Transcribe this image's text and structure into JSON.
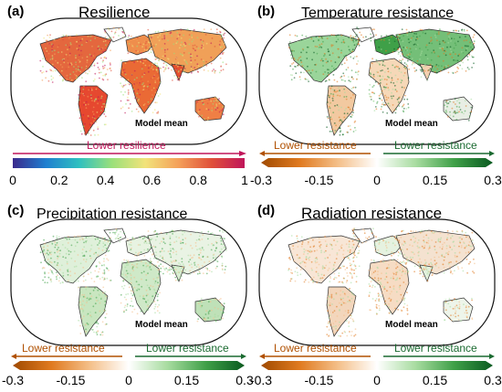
{
  "panels": [
    {
      "label": "(a)",
      "title": "Resilience",
      "note": "Model mean",
      "scheme": "resilience",
      "colorbar": {
        "arrow_text": "Lower resilience",
        "ticks": [
          "0",
          "0.2",
          "0.4",
          "0.6",
          "0.8",
          "1"
        ],
        "colors": [
          "#3b2a8c",
          "#1f7fd0",
          "#2fc0c0",
          "#9be07a",
          "#f2e37a",
          "#f4a05a",
          "#e0503a",
          "#c0155a"
        ]
      }
    },
    {
      "label": "(b)",
      "title": "Temperature resistance",
      "note": "Model mean",
      "scheme": "temperature",
      "colorbar": {
        "left_text": "Lower resistance",
        "right_text": "Lower resistance",
        "ticks": [
          "-0.3",
          "-0.15",
          "0",
          "0.15",
          "0.3"
        ],
        "colors": [
          "#a04a00",
          "#e07a20",
          "#f4c08a",
          "#ffffff",
          "#a8dca0",
          "#3fa048",
          "#0a5a20"
        ]
      }
    },
    {
      "label": "(c)",
      "title": "Precipitation resistance",
      "note": "Model mean",
      "scheme": "precipitation",
      "colorbar": {
        "left_text": "Lower resistance",
        "right_text": "Lower resistance",
        "ticks": [
          "-0.3",
          "-0.15",
          "0",
          "0.15",
          "0.3"
        ],
        "colors": [
          "#a04a00",
          "#e07a20",
          "#f4c08a",
          "#ffffff",
          "#a8dca0",
          "#3fa048",
          "#0a5a20"
        ]
      }
    },
    {
      "label": "(d)",
      "title": "Radiation resistance",
      "note": "Model mean",
      "scheme": "radiation",
      "colorbar": {
        "left_text": "Lower resistance",
        "right_text": "Lower resistance",
        "ticks": [
          "-0.3",
          "-0.15",
          "0",
          "0.15",
          "0.3"
        ],
        "colors": [
          "#a04a00",
          "#e07a20",
          "#f4c08a",
          "#ffffff",
          "#a8dca0",
          "#3fa048",
          "#0a5a20"
        ]
      }
    }
  ],
  "colors": {
    "arrow_resilience": "#c0155a",
    "arrow_lower_left": "#b05000",
    "arrow_lower_right": "#1a6a30",
    "coast": "#333333"
  }
}
